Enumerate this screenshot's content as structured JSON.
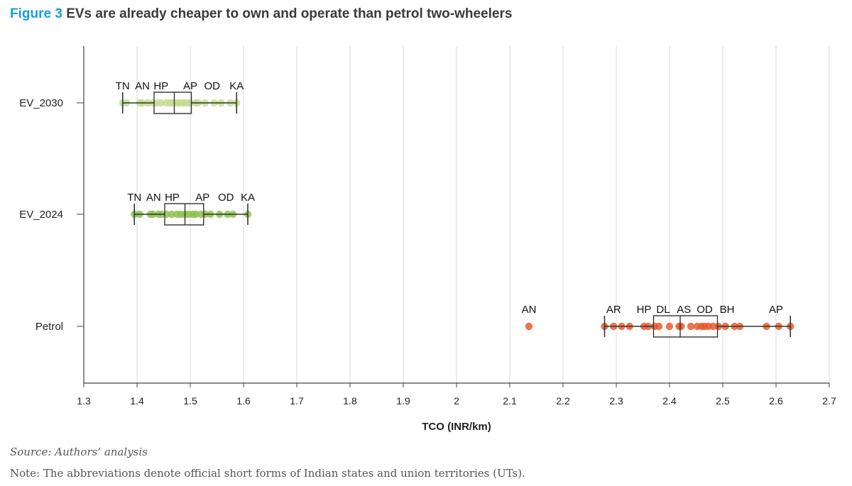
{
  "figure": {
    "label": "Figure 3",
    "title": "EVs are already cheaper to own and operate than petrol two-wheelers",
    "source": "Source: Authors’ analysis",
    "note": "Note: The abbreviations denote official short forms of Indian states and union territories (UTs)."
  },
  "colors": {
    "figure_label": "#1a9fd6",
    "ev_2030": "#c3dc8e",
    "ev_2024": "#8cc04a",
    "petrol": "#e8572a",
    "box": "#333333"
  },
  "chart_data": {
    "type": "box",
    "xlabel": "TCO (INR/km)",
    "xlim": [
      1.3,
      2.7
    ],
    "xticks": [
      1.3,
      1.4,
      1.5,
      1.6,
      1.7,
      1.8,
      1.9,
      2,
      2.1,
      2.2,
      2.3,
      2.4,
      2.5,
      2.6,
      2.7
    ],
    "grid": "vertical",
    "series": [
      {
        "name": "EV_2030",
        "color": "#c3dc8e",
        "box": {
          "whisker_low": 1.373,
          "q1": 1.432,
          "median": 1.47,
          "q3": 1.502,
          "whisker_high": 1.587
        },
        "points": [
          1.373,
          1.38,
          1.405,
          1.41,
          1.42,
          1.43,
          1.437,
          1.445,
          1.455,
          1.462,
          1.468,
          1.475,
          1.48,
          1.487,
          1.493,
          1.5,
          1.51,
          1.515,
          1.528,
          1.545,
          1.558,
          1.575,
          1.587
        ],
        "labels": [
          {
            "text": "TN",
            "x": 1.373
          },
          {
            "text": "AN",
            "x": 1.41
          },
          {
            "text": "HP",
            "x": 1.445
          },
          {
            "text": "AP",
            "x": 1.5
          },
          {
            "text": "OD",
            "x": 1.541
          },
          {
            "text": "KA",
            "x": 1.587
          }
        ]
      },
      {
        "name": "EV_2024",
        "color": "#8cc04a",
        "box": {
          "whisker_low": 1.395,
          "q1": 1.452,
          "median": 1.49,
          "q3": 1.525,
          "whisker_high": 1.608
        },
        "points": [
          1.395,
          1.405,
          1.425,
          1.43,
          1.44,
          1.446,
          1.455,
          1.465,
          1.475,
          1.482,
          1.49,
          1.497,
          1.505,
          1.51,
          1.52,
          1.528,
          1.538,
          1.555,
          1.57,
          1.58,
          1.608
        ],
        "labels": [
          {
            "text": "TN",
            "x": 1.395
          },
          {
            "text": "AN",
            "x": 1.431
          },
          {
            "text": "HP",
            "x": 1.466
          },
          {
            "text": "AP",
            "x": 1.523
          },
          {
            "text": "OD",
            "x": 1.567
          },
          {
            "text": "KA",
            "x": 1.608
          }
        ]
      },
      {
        "name": "Petrol",
        "color": "#e8572a",
        "box": {
          "whisker_low": 2.278,
          "q1": 2.37,
          "median": 2.42,
          "q3": 2.49,
          "whisker_high": 2.627
        },
        "points": [
          2.136,
          2.278,
          2.295,
          2.31,
          2.325,
          2.352,
          2.36,
          2.372,
          2.38,
          2.4,
          2.418,
          2.422,
          2.44,
          2.452,
          2.46,
          2.466,
          2.473,
          2.482,
          2.492,
          2.505,
          2.522,
          2.532,
          2.582,
          2.605,
          2.627
        ],
        "labels": [
          {
            "text": "AN",
            "x": 2.136
          },
          {
            "text": "AR",
            "x": 2.295
          },
          {
            "text": "HP",
            "x": 2.352
          },
          {
            "text": "DL",
            "x": 2.388
          },
          {
            "text": "AS",
            "x": 2.427
          },
          {
            "text": "OD",
            "x": 2.466
          },
          {
            "text": "BH",
            "x": 2.508
          },
          {
            "text": "AP",
            "x": 2.6
          }
        ]
      }
    ]
  }
}
